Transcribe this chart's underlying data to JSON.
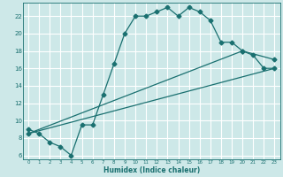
{
  "xlabel": "Humidex (Indice chaleur)",
  "xlim": [
    -0.5,
    23.5
  ],
  "ylim": [
    5.5,
    23.5
  ],
  "xticks": [
    0,
    1,
    2,
    3,
    4,
    5,
    6,
    7,
    8,
    9,
    10,
    11,
    12,
    13,
    14,
    15,
    16,
    17,
    18,
    19,
    20,
    21,
    22,
    23
  ],
  "yticks": [
    6,
    8,
    10,
    12,
    14,
    16,
    18,
    20,
    22
  ],
  "bg_color": "#cde8e8",
  "grid_color": "#ffffff",
  "line_color": "#1a7070",
  "curve_x": [
    0,
    1,
    2,
    3,
    4,
    5,
    6,
    7,
    8,
    9,
    10,
    11,
    12,
    13,
    14,
    15,
    16,
    17,
    18,
    19,
    20,
    21,
    22,
    23
  ],
  "curve_y": [
    9,
    8.5,
    7.5,
    7,
    6,
    9.5,
    9.5,
    13,
    16.5,
    20,
    22,
    22,
    22.5,
    23,
    22,
    23,
    22.5,
    21.5,
    19,
    19,
    18,
    17.5,
    16,
    16
  ],
  "line2_x": [
    0,
    23
  ],
  "line2_y": [
    8.5,
    16
  ],
  "line3_x": [
    0,
    20,
    23
  ],
  "line3_y": [
    8.5,
    18,
    17
  ],
  "marker_size": 2.5,
  "line_width": 0.9
}
